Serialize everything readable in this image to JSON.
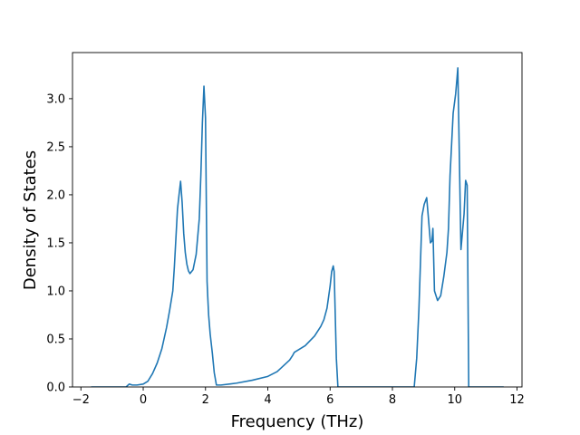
{
  "chart_data": {
    "type": "line",
    "title": "",
    "xlabel": "Frequency (THz)",
    "ylabel": "Density of States",
    "xlim": [
      -2.27,
      12.16
    ],
    "ylim": [
      0.0,
      3.48
    ],
    "xticks": [
      -2,
      0,
      2,
      4,
      6,
      8,
      10,
      12
    ],
    "yticks": [
      0.0,
      0.5,
      1.0,
      1.5,
      2.0,
      2.5,
      3.0
    ],
    "xtick_labels": [
      "−2",
      "0",
      "2",
      "4",
      "6",
      "8",
      "10",
      "12"
    ],
    "ytick_labels": [
      "0.0",
      "0.5",
      "1.0",
      "1.5",
      "2.0",
      "2.5",
      "3.0"
    ],
    "grid": false,
    "series": [
      {
        "color": "#1f77b4",
        "x": [
          -1.65,
          -0.55,
          -0.45,
          -0.35,
          -0.2,
          0.0,
          0.15,
          0.3,
          0.45,
          0.6,
          0.75,
          0.85,
          0.95,
          1.0,
          1.05,
          1.1,
          1.15,
          1.2,
          1.25,
          1.3,
          1.35,
          1.4,
          1.45,
          1.5,
          1.6,
          1.7,
          1.8,
          1.85,
          1.9,
          1.95,
          2.0,
          2.05,
          2.07,
          2.1,
          2.15,
          2.22,
          2.28,
          2.35,
          2.5,
          3.0,
          3.5,
          4.0,
          4.3,
          4.5,
          4.7,
          4.8,
          4.85,
          5.2,
          5.5,
          5.7,
          5.8,
          5.9,
          6.0,
          6.05,
          6.1,
          6.13,
          6.2,
          6.25,
          6.35,
          7.0,
          8.0,
          8.7,
          8.78,
          8.85,
          8.95,
          9.02,
          9.1,
          9.15,
          9.22,
          9.27,
          9.3,
          9.35,
          9.45,
          9.55,
          9.65,
          9.75,
          9.8,
          9.85,
          9.95,
          10.03,
          10.07,
          10.1,
          10.2,
          10.3,
          10.35,
          10.4,
          10.45,
          10.5,
          11.0,
          11.55
        ],
        "y": [
          0.0,
          0.0,
          0.03,
          0.02,
          0.02,
          0.03,
          0.06,
          0.14,
          0.25,
          0.4,
          0.62,
          0.8,
          1.0,
          1.25,
          1.55,
          1.85,
          2.0,
          2.14,
          1.92,
          1.6,
          1.4,
          1.28,
          1.21,
          1.18,
          1.22,
          1.38,
          1.75,
          2.2,
          2.75,
          3.13,
          2.8,
          1.1,
          0.95,
          0.75,
          0.55,
          0.35,
          0.15,
          0.02,
          0.02,
          0.04,
          0.07,
          0.11,
          0.16,
          0.22,
          0.28,
          0.33,
          0.36,
          0.43,
          0.53,
          0.63,
          0.7,
          0.82,
          1.05,
          1.2,
          1.26,
          1.2,
          0.3,
          0.0,
          0.0,
          0.0,
          0.0,
          0.0,
          0.3,
          0.8,
          1.78,
          1.9,
          1.97,
          1.78,
          1.5,
          1.52,
          1.65,
          1.0,
          0.9,
          0.95,
          1.15,
          1.4,
          1.65,
          2.2,
          2.85,
          3.05,
          3.2,
          3.32,
          1.43,
          1.8,
          2.15,
          2.1,
          0.0,
          0.0,
          0.0,
          0.0
        ]
      }
    ]
  }
}
